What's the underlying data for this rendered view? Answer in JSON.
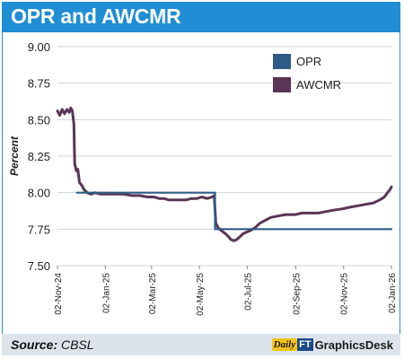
{
  "header": {
    "title": "OPR and AWCMR"
  },
  "footer": {
    "source_label": "Source:",
    "source_value": "CBSL",
    "brand_daily": "Daily",
    "brand_ft": "FT",
    "brand_desk": "GraphicsDesk"
  },
  "colors": {
    "title_bar": "#1f8ed4",
    "opr": "#2e5b86",
    "awcmr": "#5a3556",
    "grid": "#cfd6de"
  },
  "chart_data": {
    "type": "line",
    "ylabel": "Percent",
    "ylim": [
      7.5,
      9.0
    ],
    "yticks": [
      7.5,
      7.75,
      8.0,
      8.25,
      8.5,
      8.75,
      9.0
    ],
    "ytick_labels": [
      "7.50",
      "7.75",
      "8.00",
      "8.25",
      "8.50",
      "8.75",
      "9.00"
    ],
    "xlim": [
      "2024-11-02",
      "2026-01-02"
    ],
    "xticks": [
      "2024-11-02",
      "2025-01-02",
      "2025-03-02",
      "2025-05-02",
      "2025-07-02",
      "2025-09-02",
      "2025-11-02",
      "2026-01-02"
    ],
    "xtick_labels": [
      "02-Nov-24",
      "02-Jan-25",
      "02-Mar-25",
      "02-May-25",
      "02-Jul-25",
      "02-Sep-25",
      "02-Nov-25",
      "02-Jan-26"
    ],
    "grid": "horizontal",
    "legend_position": "top-right",
    "series": [
      {
        "name": "OPR",
        "color": "#2e5b86",
        "points": [
          [
            "2024-11-27",
            8.0
          ],
          [
            "2025-05-22",
            8.0
          ],
          [
            "2025-05-22",
            7.75
          ],
          [
            "2026-01-02",
            7.75
          ]
        ]
      },
      {
        "name": "AWCMR",
        "color": "#5a3556",
        "points": [
          [
            "2024-11-02",
            8.56
          ],
          [
            "2024-11-05",
            8.53
          ],
          [
            "2024-11-08",
            8.57
          ],
          [
            "2024-11-11",
            8.54
          ],
          [
            "2024-11-14",
            8.57
          ],
          [
            "2024-11-17",
            8.55
          ],
          [
            "2024-11-19",
            8.58
          ],
          [
            "2024-11-21",
            8.56
          ],
          [
            "2024-11-23",
            8.47
          ],
          [
            "2024-11-24",
            8.2
          ],
          [
            "2024-11-26",
            8.15
          ],
          [
            "2024-11-28",
            8.16
          ],
          [
            "2024-11-30",
            8.07
          ],
          [
            "2024-12-03",
            8.05
          ],
          [
            "2024-12-06",
            8.02
          ],
          [
            "2024-12-10",
            8.0
          ],
          [
            "2024-12-15",
            7.99
          ],
          [
            "2024-12-20",
            8.0
          ],
          [
            "2024-12-27",
            7.99
          ],
          [
            "2025-01-05",
            7.99
          ],
          [
            "2025-01-15",
            7.99
          ],
          [
            "2025-01-25",
            7.99
          ],
          [
            "2025-02-05",
            7.98
          ],
          [
            "2025-02-15",
            7.98
          ],
          [
            "2025-02-25",
            7.97
          ],
          [
            "2025-03-05",
            7.97
          ],
          [
            "2025-03-12",
            7.96
          ],
          [
            "2025-03-18",
            7.96
          ],
          [
            "2025-03-24",
            7.95
          ],
          [
            "2025-04-01",
            7.95
          ],
          [
            "2025-04-08",
            7.95
          ],
          [
            "2025-04-15",
            7.95
          ],
          [
            "2025-04-22",
            7.96
          ],
          [
            "2025-04-29",
            7.96
          ],
          [
            "2025-05-05",
            7.97
          ],
          [
            "2025-05-12",
            7.96
          ],
          [
            "2025-05-18",
            7.97
          ],
          [
            "2025-05-21",
            7.98
          ],
          [
            "2025-05-23",
            7.79
          ],
          [
            "2025-05-26",
            7.76
          ],
          [
            "2025-05-30",
            7.74
          ],
          [
            "2025-06-04",
            7.72
          ],
          [
            "2025-06-08",
            7.7
          ],
          [
            "2025-06-11",
            7.68
          ],
          [
            "2025-06-15",
            7.67
          ],
          [
            "2025-06-19",
            7.68
          ],
          [
            "2025-06-23",
            7.7
          ],
          [
            "2025-06-27",
            7.72
          ],
          [
            "2025-07-01",
            7.73
          ],
          [
            "2025-07-06",
            7.74
          ],
          [
            "2025-07-12",
            7.76
          ],
          [
            "2025-07-18",
            7.79
          ],
          [
            "2025-07-25",
            7.81
          ],
          [
            "2025-08-01",
            7.83
          ],
          [
            "2025-08-10",
            7.84
          ],
          [
            "2025-08-20",
            7.85
          ],
          [
            "2025-09-01",
            7.85
          ],
          [
            "2025-09-10",
            7.86
          ],
          [
            "2025-09-20",
            7.86
          ],
          [
            "2025-10-01",
            7.86
          ],
          [
            "2025-10-10",
            7.87
          ],
          [
            "2025-10-20",
            7.88
          ],
          [
            "2025-11-01",
            7.89
          ],
          [
            "2025-11-10",
            7.9
          ],
          [
            "2025-11-20",
            7.91
          ],
          [
            "2025-11-30",
            7.92
          ],
          [
            "2025-12-10",
            7.93
          ],
          [
            "2025-12-18",
            7.95
          ],
          [
            "2025-12-24",
            7.97
          ],
          [
            "2025-12-28",
            8.0
          ],
          [
            "2025-12-31",
            8.02
          ],
          [
            "2026-01-02",
            8.04
          ]
        ]
      }
    ]
  }
}
